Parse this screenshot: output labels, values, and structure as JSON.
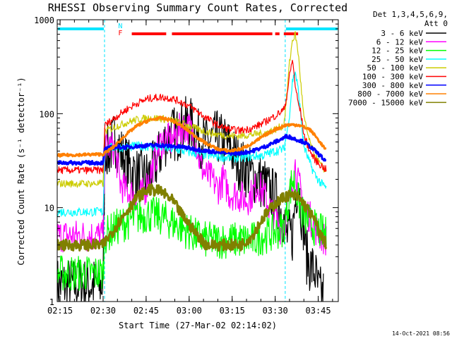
{
  "chart_data": {
    "type": "line",
    "title": "RHESSI Observing Summary Count Rates, Corrected",
    "xlabel": "Start Time (27-Mar-02 02:14:02)",
    "ylabel": "Corrected Count Rate (s⁻¹ detector⁻¹)",
    "y_scale": "log",
    "ylim": [
      1,
      1000
    ],
    "xlim_minutes": [
      0,
      98
    ],
    "x_ticks": [
      {
        "m": 1,
        "label": "02:15"
      },
      {
        "m": 16,
        "label": "02:30"
      },
      {
        "m": 31,
        "label": "02:45"
      },
      {
        "m": 46,
        "label": "03:00"
      },
      {
        "m": 61,
        "label": "03:15"
      },
      {
        "m": 76,
        "label": "03:30"
      },
      {
        "m": 91,
        "label": "03:45"
      }
    ],
    "y_tick_labels": [
      {
        "v": 1,
        "label": "1"
      },
      {
        "v": 10,
        "label": "10"
      },
      {
        "v": 100,
        "label": "100"
      },
      {
        "v": 1000,
        "label": "1000"
      }
    ],
    "legend_header": [
      "Det 1,3,4,5,6,9,",
      "Att 0"
    ],
    "legend_placement": "right",
    "footer_date": "14-Oct-2021 08:56",
    "night_intervals": [
      [
        0,
        16.5
      ],
      [
        79.5,
        98
      ]
    ],
    "flags": [
      {
        "label": "N",
        "color": "#00e5ff"
      },
      {
        "label": "F",
        "color": "#ff0000"
      }
    ],
    "series": [
      {
        "name": "3 - 6 keV",
        "color": "#000000",
        "width": 1.2,
        "noise": 0.3,
        "points": [
          [
            0,
            1.5
          ],
          [
            16,
            1.5
          ],
          [
            16.6,
            45
          ],
          [
            18,
            38
          ],
          [
            20,
            55
          ],
          [
            22,
            40
          ],
          [
            24,
            30
          ],
          [
            26,
            25
          ],
          [
            28,
            22
          ],
          [
            30,
            21
          ],
          [
            32,
            22
          ],
          [
            34,
            28
          ],
          [
            36,
            38
          ],
          [
            38,
            55
          ],
          [
            40,
            62
          ],
          [
            42,
            60
          ],
          [
            44,
            75
          ],
          [
            46,
            80
          ],
          [
            48,
            65
          ],
          [
            50,
            52
          ],
          [
            52,
            48
          ],
          [
            54,
            52
          ],
          [
            56,
            56
          ],
          [
            58,
            50
          ],
          [
            60,
            45
          ],
          [
            62,
            35
          ],
          [
            64,
            28
          ],
          [
            66,
            25
          ],
          [
            68,
            22
          ],
          [
            70,
            20
          ],
          [
            72,
            18
          ],
          [
            74,
            15
          ],
          [
            76,
            13
          ],
          [
            78,
            10
          ],
          [
            80,
            5
          ],
          [
            82,
            5
          ],
          [
            83,
            12
          ],
          [
            84,
            20
          ],
          [
            85,
            10
          ],
          [
            86,
            6
          ],
          [
            87,
            3
          ],
          [
            88,
            2.5
          ],
          [
            90,
            2
          ],
          [
            91,
            1.3
          ],
          [
            92,
            1.2
          ],
          [
            93,
            1.2
          ]
        ]
      },
      {
        "name": "6 - 12 keV",
        "color": "#ff00ff",
        "width": 1.2,
        "noise": 0.18,
        "points": [
          [
            0,
            5
          ],
          [
            16,
            5
          ],
          [
            16.6,
            42
          ],
          [
            18,
            45
          ],
          [
            20,
            42
          ],
          [
            21,
            28
          ],
          [
            22,
            18
          ],
          [
            24,
            15
          ],
          [
            26,
            14
          ],
          [
            28,
            13
          ],
          [
            30,
            14
          ],
          [
            32,
            20
          ],
          [
            34,
            32
          ],
          [
            36,
            48
          ],
          [
            38,
            55
          ],
          [
            40,
            50
          ],
          [
            42,
            65
          ],
          [
            44,
            72
          ],
          [
            46,
            70
          ],
          [
            48,
            55
          ],
          [
            50,
            28
          ],
          [
            52,
            22
          ],
          [
            54,
            20
          ],
          [
            56,
            16
          ],
          [
            58,
            20
          ],
          [
            60,
            14
          ],
          [
            62,
            14
          ],
          [
            64,
            13
          ],
          [
            66,
            12
          ],
          [
            68,
            14
          ],
          [
            70,
            18
          ],
          [
            72,
            14
          ],
          [
            74,
            10
          ],
          [
            76,
            8
          ],
          [
            78,
            6
          ],
          [
            80,
            8
          ],
          [
            82,
            20
          ],
          [
            83,
            28
          ],
          [
            84,
            18
          ],
          [
            85,
            15
          ],
          [
            86,
            10
          ],
          [
            88,
            8
          ],
          [
            90,
            6
          ],
          [
            92,
            5
          ],
          [
            94,
            4.5
          ]
        ]
      },
      {
        "name": "12 - 25 keV",
        "color": "#00ff00",
        "width": 1.2,
        "noise": 0.2,
        "points": [
          [
            0,
            2
          ],
          [
            16,
            2
          ],
          [
            16.6,
            5
          ],
          [
            20,
            6
          ],
          [
            24,
            7
          ],
          [
            28,
            8
          ],
          [
            32,
            8.5
          ],
          [
            36,
            8
          ],
          [
            40,
            7
          ],
          [
            44,
            6
          ],
          [
            48,
            5
          ],
          [
            52,
            4.5
          ],
          [
            56,
            4.5
          ],
          [
            60,
            4.5
          ],
          [
            64,
            4.5
          ],
          [
            68,
            4.5
          ],
          [
            72,
            5
          ],
          [
            76,
            5.5
          ],
          [
            79,
            6
          ],
          [
            81,
            14
          ],
          [
            82,
            20
          ],
          [
            83,
            18
          ],
          [
            84,
            12
          ],
          [
            86,
            8
          ],
          [
            88,
            7
          ],
          [
            90,
            6
          ],
          [
            92,
            5.5
          ],
          [
            94,
            5
          ]
        ]
      },
      {
        "name": "25 - 50 keV",
        "color": "#00ffff",
        "width": 1.2,
        "noise": 0.05,
        "points": [
          [
            0,
            9
          ],
          [
            16,
            9
          ],
          [
            16.6,
            42
          ],
          [
            20,
            44
          ],
          [
            24,
            44
          ],
          [
            28,
            45
          ],
          [
            32,
            45
          ],
          [
            36,
            44
          ],
          [
            40,
            42
          ],
          [
            44,
            40
          ],
          [
            48,
            38
          ],
          [
            52,
            36
          ],
          [
            56,
            35
          ],
          [
            60,
            34
          ],
          [
            64,
            34
          ],
          [
            68,
            35
          ],
          [
            72,
            36
          ],
          [
            76,
            40
          ],
          [
            79,
            42
          ],
          [
            80,
            60
          ],
          [
            81,
            100
          ],
          [
            82,
            220
          ],
          [
            83,
            280
          ],
          [
            84,
            180
          ],
          [
            85,
            90
          ],
          [
            86,
            45
          ],
          [
            88,
            30
          ],
          [
            90,
            22
          ],
          [
            92,
            18
          ],
          [
            94,
            16
          ]
        ]
      },
      {
        "name": "50 - 100 keV",
        "color": "#cccc00",
        "width": 1.2,
        "noise": 0.04,
        "points": [
          [
            0,
            18
          ],
          [
            16,
            18
          ],
          [
            16.6,
            65
          ],
          [
            20,
            72
          ],
          [
            24,
            80
          ],
          [
            28,
            87
          ],
          [
            32,
            90
          ],
          [
            36,
            89
          ],
          [
            40,
            85
          ],
          [
            44,
            78
          ],
          [
            48,
            70
          ],
          [
            52,
            64
          ],
          [
            56,
            60
          ],
          [
            60,
            58
          ],
          [
            64,
            58
          ],
          [
            68,
            60
          ],
          [
            72,
            62
          ],
          [
            76,
            68
          ],
          [
            79,
            75
          ],
          [
            80,
            150
          ],
          [
            81,
            350
          ],
          [
            82,
            600
          ],
          [
            83,
            700
          ],
          [
            84,
            450
          ],
          [
            85,
            200
          ],
          [
            86,
            90
          ],
          [
            88,
            50
          ],
          [
            90,
            35
          ],
          [
            92,
            28
          ],
          [
            94,
            24
          ]
        ]
      },
      {
        "name": "100 - 300 keV",
        "color": "#ff0000",
        "width": 1.2,
        "noise": 0.04,
        "points": [
          [
            0,
            25
          ],
          [
            16,
            25
          ],
          [
            16.6,
            75
          ],
          [
            20,
            90
          ],
          [
            24,
            110
          ],
          [
            28,
            130
          ],
          [
            32,
            145
          ],
          [
            36,
            150
          ],
          [
            40,
            145
          ],
          [
            44,
            130
          ],
          [
            48,
            110
          ],
          [
            52,
            90
          ],
          [
            56,
            75
          ],
          [
            60,
            68
          ],
          [
            64,
            66
          ],
          [
            68,
            70
          ],
          [
            72,
            80
          ],
          [
            76,
            95
          ],
          [
            79,
            110
          ],
          [
            80,
            150
          ],
          [
            81,
            250
          ],
          [
            82,
            380
          ],
          [
            83,
            200
          ],
          [
            84,
            130
          ],
          [
            85,
            100
          ],
          [
            86,
            60
          ],
          [
            88,
            40
          ],
          [
            90,
            32
          ],
          [
            92,
            28
          ],
          [
            94,
            25
          ]
        ]
      },
      {
        "name": "300 - 800 keV",
        "color": "#0000ff",
        "width": 3,
        "noise": 0.02,
        "points": [
          [
            0,
            30
          ],
          [
            16,
            30
          ],
          [
            16.6,
            42
          ],
          [
            20,
            44
          ],
          [
            24,
            44
          ],
          [
            28,
            45
          ],
          [
            32,
            46
          ],
          [
            36,
            46
          ],
          [
            40,
            45
          ],
          [
            44,
            44
          ],
          [
            48,
            42
          ],
          [
            52,
            40
          ],
          [
            56,
            39
          ],
          [
            60,
            38
          ],
          [
            64,
            38
          ],
          [
            68,
            40
          ],
          [
            72,
            44
          ],
          [
            76,
            50
          ],
          [
            79,
            55
          ],
          [
            80,
            58
          ],
          [
            82,
            55
          ],
          [
            86,
            50
          ],
          [
            88,
            45
          ],
          [
            90,
            40
          ],
          [
            92,
            35
          ],
          [
            94,
            30
          ]
        ]
      },
      {
        "name": "800 - 7000 keV",
        "color": "#ff8000",
        "width": 3,
        "noise": 0.015,
        "points": [
          [
            0,
            36
          ],
          [
            16,
            37
          ],
          [
            20,
            45
          ],
          [
            24,
            60
          ],
          [
            28,
            75
          ],
          [
            32,
            85
          ],
          [
            36,
            90
          ],
          [
            40,
            85
          ],
          [
            44,
            72
          ],
          [
            48,
            58
          ],
          [
            52,
            48
          ],
          [
            56,
            42
          ],
          [
            60,
            40
          ],
          [
            64,
            42
          ],
          [
            68,
            48
          ],
          [
            72,
            58
          ],
          [
            76,
            68
          ],
          [
            80,
            76
          ],
          [
            84,
            76
          ],
          [
            88,
            68
          ],
          [
            90,
            58
          ],
          [
            92,
            48
          ],
          [
            94,
            40
          ]
        ]
      },
      {
        "name": "7000 - 15000 keV",
        "color": "#808000",
        "width": 3,
        "noise": 0.06,
        "points": [
          [
            0,
            4
          ],
          [
            16,
            4
          ],
          [
            20,
            6
          ],
          [
            24,
            9
          ],
          [
            28,
            13
          ],
          [
            32,
            15.5
          ],
          [
            36,
            15
          ],
          [
            40,
            12
          ],
          [
            44,
            8
          ],
          [
            48,
            5.5
          ],
          [
            52,
            4
          ],
          [
            56,
            4
          ],
          [
            60,
            4
          ],
          [
            64,
            4
          ],
          [
            68,
            5
          ],
          [
            72,
            8
          ],
          [
            76,
            11
          ],
          [
            80,
            13.5
          ],
          [
            84,
            13
          ],
          [
            88,
            9
          ],
          [
            90,
            7
          ],
          [
            92,
            5
          ],
          [
            94,
            4
          ]
        ]
      }
    ]
  }
}
